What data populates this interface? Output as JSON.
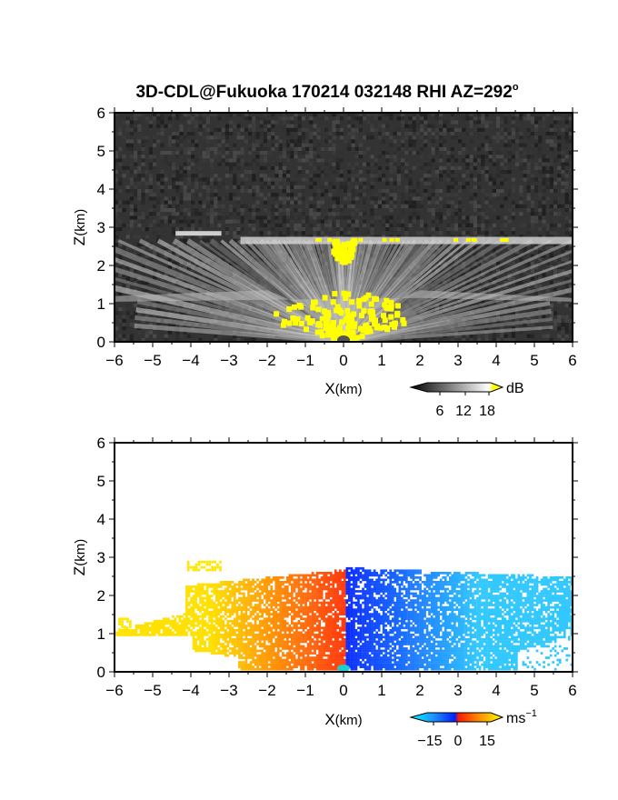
{
  "chart_data": [
    {
      "type": "heatmap",
      "title_main": "3D-CDL@Fukuoka 170214 032148 RHI AZ=292",
      "title_deg": "o",
      "xlabel_main": "X",
      "xlabel_unit": "(km)",
      "ylabel_main": "Z",
      "ylabel_unit": "(km)",
      "xlim": [
        -6,
        6
      ],
      "ylim": [
        0,
        6
      ],
      "x_ticks": [
        "-6",
        "-5",
        "-4",
        "-3",
        "-2",
        "-1",
        "0",
        "1",
        "2",
        "3",
        "4",
        "5",
        "6"
      ],
      "y_ticks": [
        "0",
        "1",
        "2",
        "3",
        "4",
        "5",
        "6"
      ],
      "colorbar": {
        "unit": "dB",
        "ticks": [
          6,
          12,
          18
        ],
        "tick_labels": [
          "6",
          "12",
          "18"
        ],
        "range": [
          0,
          20
        ],
        "colors": [
          "#000000",
          "#ffffff",
          "#ffff00"
        ]
      },
      "background_color": "#333333",
      "strong_echo_color": "#ffff00",
      "features": {
        "cloud_base_right_km": 2.65,
        "cloud_base_left_km": 2.85,
        "aerosol_layer_km": 1.25
      }
    },
    {
      "type": "heatmap",
      "xlabel_main": "X",
      "xlabel_unit": "(km)",
      "ylabel_main": "Z",
      "ylabel_unit": "(km)",
      "xlim": [
        -6,
        6
      ],
      "ylim": [
        0,
        6
      ],
      "x_ticks": [
        "-6",
        "-5",
        "-4",
        "-3",
        "-2",
        "-1",
        "0",
        "1",
        "2",
        "3",
        "4",
        "5",
        "6"
      ],
      "y_ticks": [
        "0",
        "1",
        "2",
        "3",
        "4",
        "5",
        "6"
      ],
      "colorbar": {
        "unit_main": "ms",
        "unit_exp": "−1",
        "ticks": [
          -15,
          0,
          15
        ],
        "tick_labels": [
          "−15",
          "0",
          "15"
        ],
        "range": [
          -20,
          20
        ],
        "colors": [
          "#00ffff",
          "#0040ff",
          "#ff2000",
          "#ffff00"
        ]
      },
      "color_near_negative": "#0a2aff",
      "color_far_negative": "#30c8ff",
      "color_near_positive": "#ff3a10",
      "color_far_positive": "#ffe000"
    }
  ]
}
